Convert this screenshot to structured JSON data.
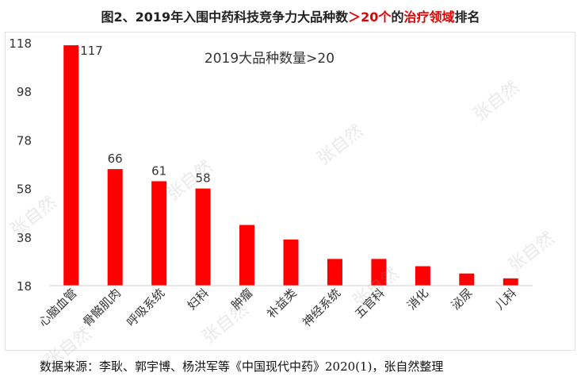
{
  "title": {
    "part1": "图2、2019年入围中药科技竞争力大品种数",
    "part2": "＞20个",
    "part3": "的",
    "part4": "治疗领域",
    "part5": "排名"
  },
  "chart_data": {
    "type": "bar",
    "title": "2019大品种数量>20",
    "categories": [
      "心脑血管",
      "骨骼肌肉",
      "呼吸系统",
      "妇科",
      "肿瘤",
      "补益类",
      "神经系统",
      "五官科",
      "消化",
      "泌尿",
      "儿科"
    ],
    "values": [
      117,
      66,
      61,
      58,
      43,
      37,
      29,
      29,
      26,
      23,
      21
    ],
    "data_labels": [
      "117",
      "66",
      "61",
      "58",
      "",
      "",
      "",
      "",
      "",
      "",
      ""
    ],
    "yticks": [
      "118",
      "98",
      "78",
      "58",
      "38",
      "18"
    ],
    "ylim": [
      18,
      118
    ],
    "bar_color": "#ff0000",
    "grid": false
  },
  "source": "数据来源：李耿、郭宇博、杨洪军等《中国现代中药》2020(1)，张自然整理",
  "watermark": "张自然"
}
